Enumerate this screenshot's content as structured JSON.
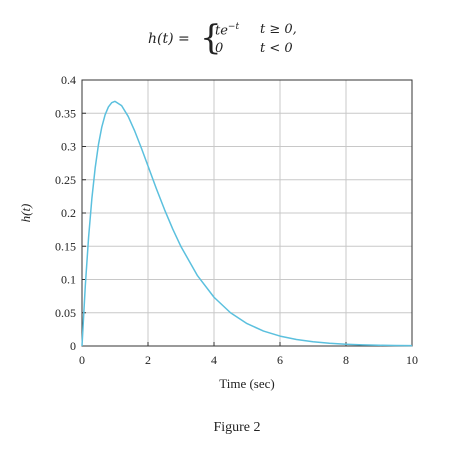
{
  "equation": {
    "lhs": "h(t) =",
    "case1_expr": "te",
    "case1_exp": "−t",
    "case1_cond": "t ≥ 0,",
    "case2_expr": "0",
    "case2_cond": "t < 0"
  },
  "chart_data": {
    "type": "line",
    "title": "",
    "xlabel": "Time (sec)",
    "ylabel": "h(t)",
    "xlim": [
      0,
      10
    ],
    "ylim": [
      0,
      0.4
    ],
    "grid": true,
    "x_ticks": [
      0,
      2,
      4,
      6,
      8,
      10
    ],
    "x_tick_labels": [
      "0",
      "2",
      "4",
      "6",
      "8",
      "10"
    ],
    "y_ticks": [
      0,
      0.05,
      0.1,
      0.15,
      0.2,
      0.25,
      0.3,
      0.35,
      0.4
    ],
    "y_tick_labels": [
      "0",
      "0.05",
      "0.1",
      "0.15",
      "0.2",
      "0.25",
      "0.3",
      "0.35",
      "0.4"
    ],
    "series": [
      {
        "color": "#5bc0de",
        "x": [
          0,
          0.1,
          0.2,
          0.3,
          0.4,
          0.5,
          0.6,
          0.7,
          0.8,
          0.9,
          1.0,
          1.2,
          1.4,
          1.6,
          1.8,
          2.0,
          2.25,
          2.5,
          2.75,
          3.0,
          3.5,
          4.0,
          4.5,
          5.0,
          5.5,
          6.0,
          6.5,
          7.0,
          7.5,
          8.0,
          8.5,
          9.0,
          9.5,
          10.0
        ],
        "y": [
          0,
          0.0905,
          0.1637,
          0.2222,
          0.2681,
          0.3033,
          0.3293,
          0.3476,
          0.3595,
          0.3659,
          0.3679,
          0.3614,
          0.3452,
          0.323,
          0.2975,
          0.2707,
          0.2371,
          0.2052,
          0.1758,
          0.1494,
          0.1057,
          0.0733,
          0.05,
          0.0337,
          0.0225,
          0.0149,
          0.0098,
          0.0064,
          0.0041,
          0.0027,
          0.0017,
          0.0011,
          0.0007,
          0.0005
        ]
      }
    ]
  },
  "figure": {
    "caption": "Figure 2"
  }
}
